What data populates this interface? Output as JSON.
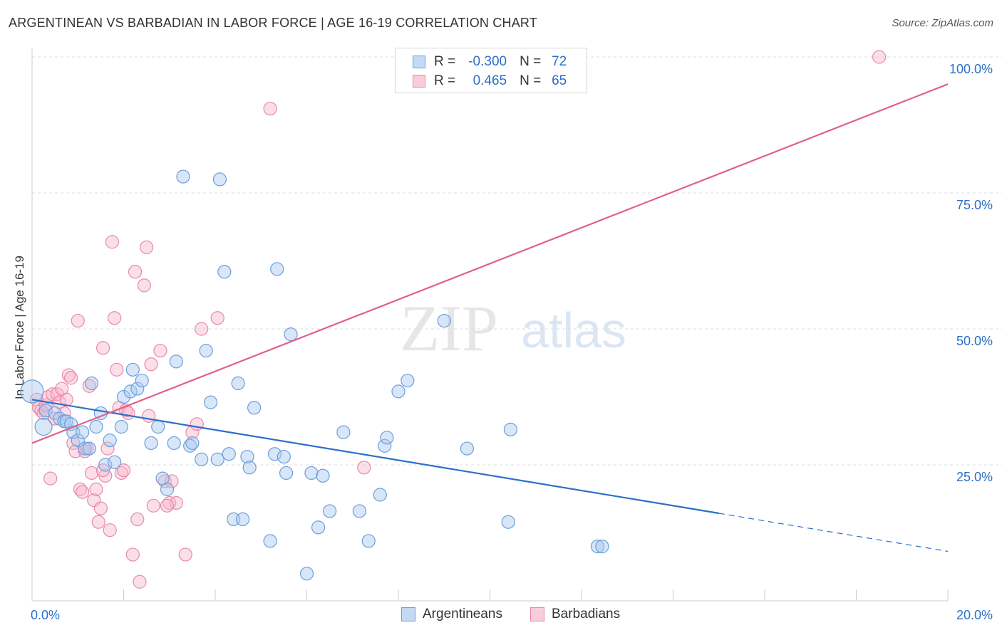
{
  "title": "ARGENTINEAN VS BARBADIAN IN LABOR FORCE | AGE 16-19 CORRELATION CHART",
  "source": "Source: ZipAtlas.com",
  "watermark": {
    "zip": "ZIP",
    "atlas": "atlas"
  },
  "legend_top": {
    "rows": [
      {
        "r_label": "R =",
        "r_value": "-0.300",
        "n_label": "N =",
        "n_value": "72"
      },
      {
        "r_label": "R =",
        "r_value": "0.465",
        "n_label": "N =",
        "n_value": "65"
      }
    ]
  },
  "legend_bottom": {
    "argentineans": "Argentineans",
    "barbadians": "Barbadians"
  },
  "colors": {
    "blue_fill": "#a8c8f0",
    "blue_stroke": "#6a9fdc",
    "blue_line": "#2d6fc9",
    "pink_fill": "#f6b8cb",
    "pink_stroke": "#e88aa8",
    "pink_line": "#e0608c",
    "tick_color": "#2d6fc9",
    "grid": "#dddddd"
  },
  "chart_data": {
    "type": "scatter",
    "title": "ARGENTINEAN VS BARBADIAN IN LABOR FORCE | AGE 16-19 CORRELATION CHART",
    "xlabel": "",
    "ylabel": "In Labor Force | Age 16-19",
    "xlim": [
      0,
      20
    ],
    "ylim": [
      0,
      100
    ],
    "x_tick_labels": [
      "0.0%",
      "20.0%"
    ],
    "y_ticks": [
      25,
      50,
      75,
      100
    ],
    "y_tick_labels": [
      "25.0%",
      "50.0%",
      "75.0%",
      "100.0%"
    ],
    "series": [
      {
        "name": "Argentineans",
        "r": -0.3,
        "n": 72,
        "trend": {
          "x0": 0,
          "y0": 37.0,
          "x1": 15.0,
          "y1": 16.1,
          "dash_to_x": 20,
          "dash_to_y": 9.1
        },
        "points": [
          [
            0.0,
            38.5,
            16
          ],
          [
            0.25,
            32.0,
            12
          ],
          [
            0.3,
            35.0,
            9
          ],
          [
            0.5,
            34.5,
            9
          ],
          [
            0.6,
            33.5,
            9
          ],
          [
            0.7,
            33.0,
            9
          ],
          [
            0.75,
            33.0,
            9
          ],
          [
            0.85,
            32.5,
            9
          ],
          [
            0.9,
            31.0,
            9
          ],
          [
            1.0,
            29.5,
            9
          ],
          [
            1.1,
            31.0,
            9
          ],
          [
            1.15,
            28.0,
            9
          ],
          [
            1.25,
            28.0,
            9
          ],
          [
            1.3,
            40.0,
            9
          ],
          [
            1.4,
            32.0,
            9
          ],
          [
            1.5,
            34.5,
            9
          ],
          [
            1.6,
            25.0,
            9
          ],
          [
            1.7,
            29.5,
            9
          ],
          [
            1.8,
            25.5,
            9
          ],
          [
            1.95,
            32.0,
            9
          ],
          [
            2.0,
            37.5,
            9
          ],
          [
            2.15,
            38.5,
            9
          ],
          [
            2.2,
            42.5,
            9
          ],
          [
            2.3,
            39.0,
            9
          ],
          [
            2.4,
            40.5,
            9
          ],
          [
            2.6,
            29.0,
            9
          ],
          [
            2.75,
            32.0,
            9
          ],
          [
            2.85,
            22.5,
            9
          ],
          [
            2.95,
            20.5,
            9
          ],
          [
            3.1,
            29.0,
            9
          ],
          [
            3.15,
            44.0,
            9
          ],
          [
            3.3,
            78.0,
            9
          ],
          [
            3.45,
            28.5,
            9
          ],
          [
            3.5,
            29.0,
            9
          ],
          [
            3.7,
            26.0,
            9
          ],
          [
            3.8,
            46.0,
            9
          ],
          [
            3.9,
            36.5,
            9
          ],
          [
            4.05,
            26.0,
            9
          ],
          [
            4.1,
            77.5,
            9
          ],
          [
            4.2,
            60.5,
            9
          ],
          [
            4.3,
            27.0,
            9
          ],
          [
            4.4,
            15.0,
            9
          ],
          [
            4.5,
            40.0,
            9
          ],
          [
            4.6,
            15.0,
            9
          ],
          [
            4.7,
            26.5,
            9
          ],
          [
            4.75,
            24.5,
            9
          ],
          [
            4.85,
            35.5,
            9
          ],
          [
            5.2,
            11.0,
            9
          ],
          [
            5.3,
            27.0,
            9
          ],
          [
            5.35,
            61.0,
            9
          ],
          [
            5.5,
            26.5,
            9
          ],
          [
            5.55,
            23.5,
            9
          ],
          [
            5.65,
            49.0,
            9
          ],
          [
            6.0,
            5.0,
            9
          ],
          [
            6.1,
            23.5,
            9
          ],
          [
            6.25,
            13.5,
            9
          ],
          [
            6.35,
            23.0,
            9
          ],
          [
            6.5,
            16.5,
            9
          ],
          [
            6.8,
            31.0,
            9
          ],
          [
            7.15,
            16.5,
            9
          ],
          [
            7.35,
            11.0,
            9
          ],
          [
            7.6,
            19.5,
            9
          ],
          [
            7.7,
            28.5,
            9
          ],
          [
            7.75,
            30.0,
            9
          ],
          [
            8.0,
            38.5,
            9
          ],
          [
            8.2,
            40.5,
            9
          ],
          [
            9.0,
            51.5,
            9
          ],
          [
            9.5,
            28.0,
            9
          ],
          [
            10.4,
            14.5,
            9
          ],
          [
            10.45,
            31.5,
            9
          ],
          [
            12.35,
            10.0,
            9
          ],
          [
            12.45,
            10.0,
            9
          ]
        ]
      },
      {
        "name": "Barbadians",
        "r": 0.465,
        "n": 65,
        "trend": {
          "x0": 0,
          "y0": 29.0,
          "x1": 20,
          "y1": 95.0
        },
        "points": [
          [
            0.1,
            37.0,
            9
          ],
          [
            0.15,
            35.5,
            9
          ],
          [
            0.2,
            35.0,
            9
          ],
          [
            0.25,
            34.5,
            9
          ],
          [
            0.3,
            36.0,
            9
          ],
          [
            0.35,
            37.5,
            9
          ],
          [
            0.4,
            22.5,
            9
          ],
          [
            0.45,
            38.0,
            9
          ],
          [
            0.5,
            33.5,
            9
          ],
          [
            0.55,
            38.0,
            9
          ],
          [
            0.6,
            36.5,
            9
          ],
          [
            0.65,
            39.0,
            9
          ],
          [
            0.7,
            34.5,
            9
          ],
          [
            0.75,
            37.0,
            9
          ],
          [
            0.8,
            41.5,
            9
          ],
          [
            0.85,
            41.0,
            9
          ],
          [
            0.9,
            29.0,
            9
          ],
          [
            0.95,
            27.5,
            9
          ],
          [
            1.0,
            51.5,
            9
          ],
          [
            1.05,
            20.5,
            9
          ],
          [
            1.1,
            20.0,
            9
          ],
          [
            1.15,
            27.5,
            9
          ],
          [
            1.2,
            28.0,
            9
          ],
          [
            1.25,
            39.5,
            9
          ],
          [
            1.3,
            23.5,
            9
          ],
          [
            1.35,
            18.5,
            9
          ],
          [
            1.4,
            20.5,
            9
          ],
          [
            1.45,
            14.5,
            9
          ],
          [
            1.5,
            17.0,
            9
          ],
          [
            1.55,
            46.5,
            9
          ],
          [
            1.6,
            23.0,
            9
          ],
          [
            1.65,
            28.0,
            9
          ],
          [
            1.7,
            13.0,
            9
          ],
          [
            1.75,
            66.0,
            9
          ],
          [
            1.8,
            52.0,
            9
          ],
          [
            1.85,
            42.5,
            9
          ],
          [
            1.9,
            35.5,
            9
          ],
          [
            1.95,
            23.5,
            9
          ],
          [
            2.0,
            24.0,
            9
          ],
          [
            2.05,
            35.0,
            9
          ],
          [
            2.1,
            34.5,
            9
          ],
          [
            2.2,
            8.5,
            9
          ],
          [
            2.25,
            60.5,
            9
          ],
          [
            2.3,
            15.0,
            9
          ],
          [
            2.35,
            3.5,
            9
          ],
          [
            2.45,
            58.0,
            9
          ],
          [
            2.5,
            65.0,
            9
          ],
          [
            2.55,
            34.0,
            9
          ],
          [
            2.6,
            43.5,
            9
          ],
          [
            2.65,
            17.5,
            9
          ],
          [
            2.8,
            46.0,
            9
          ],
          [
            2.9,
            22.0,
            9
          ],
          [
            3.0,
            18.0,
            9
          ],
          [
            3.05,
            22.0,
            9
          ],
          [
            3.15,
            18.0,
            9
          ],
          [
            3.35,
            8.5,
            9
          ],
          [
            3.5,
            31.0,
            9
          ],
          [
            3.6,
            32.5,
            9
          ],
          [
            3.7,
            50.0,
            9
          ],
          [
            4.05,
            52.0,
            9
          ],
          [
            5.2,
            90.5,
            9
          ],
          [
            7.25,
            24.5,
            9
          ],
          [
            18.5,
            100.0,
            9
          ],
          [
            1.55,
            24.0,
            9
          ],
          [
            2.95,
            17.5,
            9
          ]
        ]
      }
    ]
  }
}
